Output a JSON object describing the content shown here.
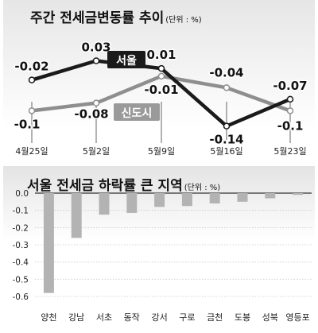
{
  "top_chart": {
    "title": "주간 전세금변동률 추이",
    "unit": "(단위 : %)"
  },
  "bottom_chart": {
    "title": "서울 전세금 하락률 큰 지역",
    "unit": "(단위 : %)"
  },
  "colors": {
    "seoul_line": "#1a1a1a",
    "newtown_line": "#8e8e8e",
    "bar": "#b3b3b3",
    "label_box_dark": "#1a1a1a",
    "label_box_gray": "#9a9a9a"
  },
  "chart_data": [
    {
      "type": "line",
      "title": "주간 전세금변동률 추이",
      "unit": "(단위 : %)",
      "categories": [
        "4월25일",
        "5월2일",
        "5월9일",
        "5월16일",
        "5월23일"
      ],
      "series": [
        {
          "name": "서울",
          "values": [
            -0.02,
            0.03,
            0.01,
            -0.14,
            -0.07
          ],
          "labels": [
            "-0.02",
            "0.03",
            "0.01",
            "-0.14",
            "-0.07"
          ]
        },
        {
          "name": "신도시",
          "values": [
            -0.1,
            -0.08,
            -0.01,
            -0.04,
            -0.1
          ],
          "labels": [
            "-0.1",
            "-0.08",
            "-0.01",
            "-0.04",
            "-0.1"
          ]
        }
      ],
      "ylim": [
        -0.18,
        0.06
      ],
      "grid": false,
      "legend": "inline labels on lines"
    },
    {
      "type": "bar",
      "title": "서울 전세금 하락률 큰 지역",
      "unit": "(단위 : %)",
      "categories": [
        "양천",
        "강남",
        "서초",
        "동작",
        "강서",
        "구로",
        "금천",
        "도봉",
        "성북",
        "영등포"
      ],
      "values": [
        -0.58,
        -0.26,
        -0.125,
        -0.115,
        -0.08,
        -0.075,
        -0.06,
        -0.05,
        -0.03,
        -0.01
      ],
      "ylim": [
        -0.6,
        0.0
      ],
      "yticks": [
        "0.0",
        "-0.1",
        "-0.2",
        "-0.3",
        "-0.4",
        "-0.5",
        "-0.6"
      ],
      "ytick_values": [
        0.0,
        -0.1,
        -0.2,
        -0.3,
        -0.4,
        -0.5,
        -0.6
      ],
      "grid": true
    }
  ]
}
